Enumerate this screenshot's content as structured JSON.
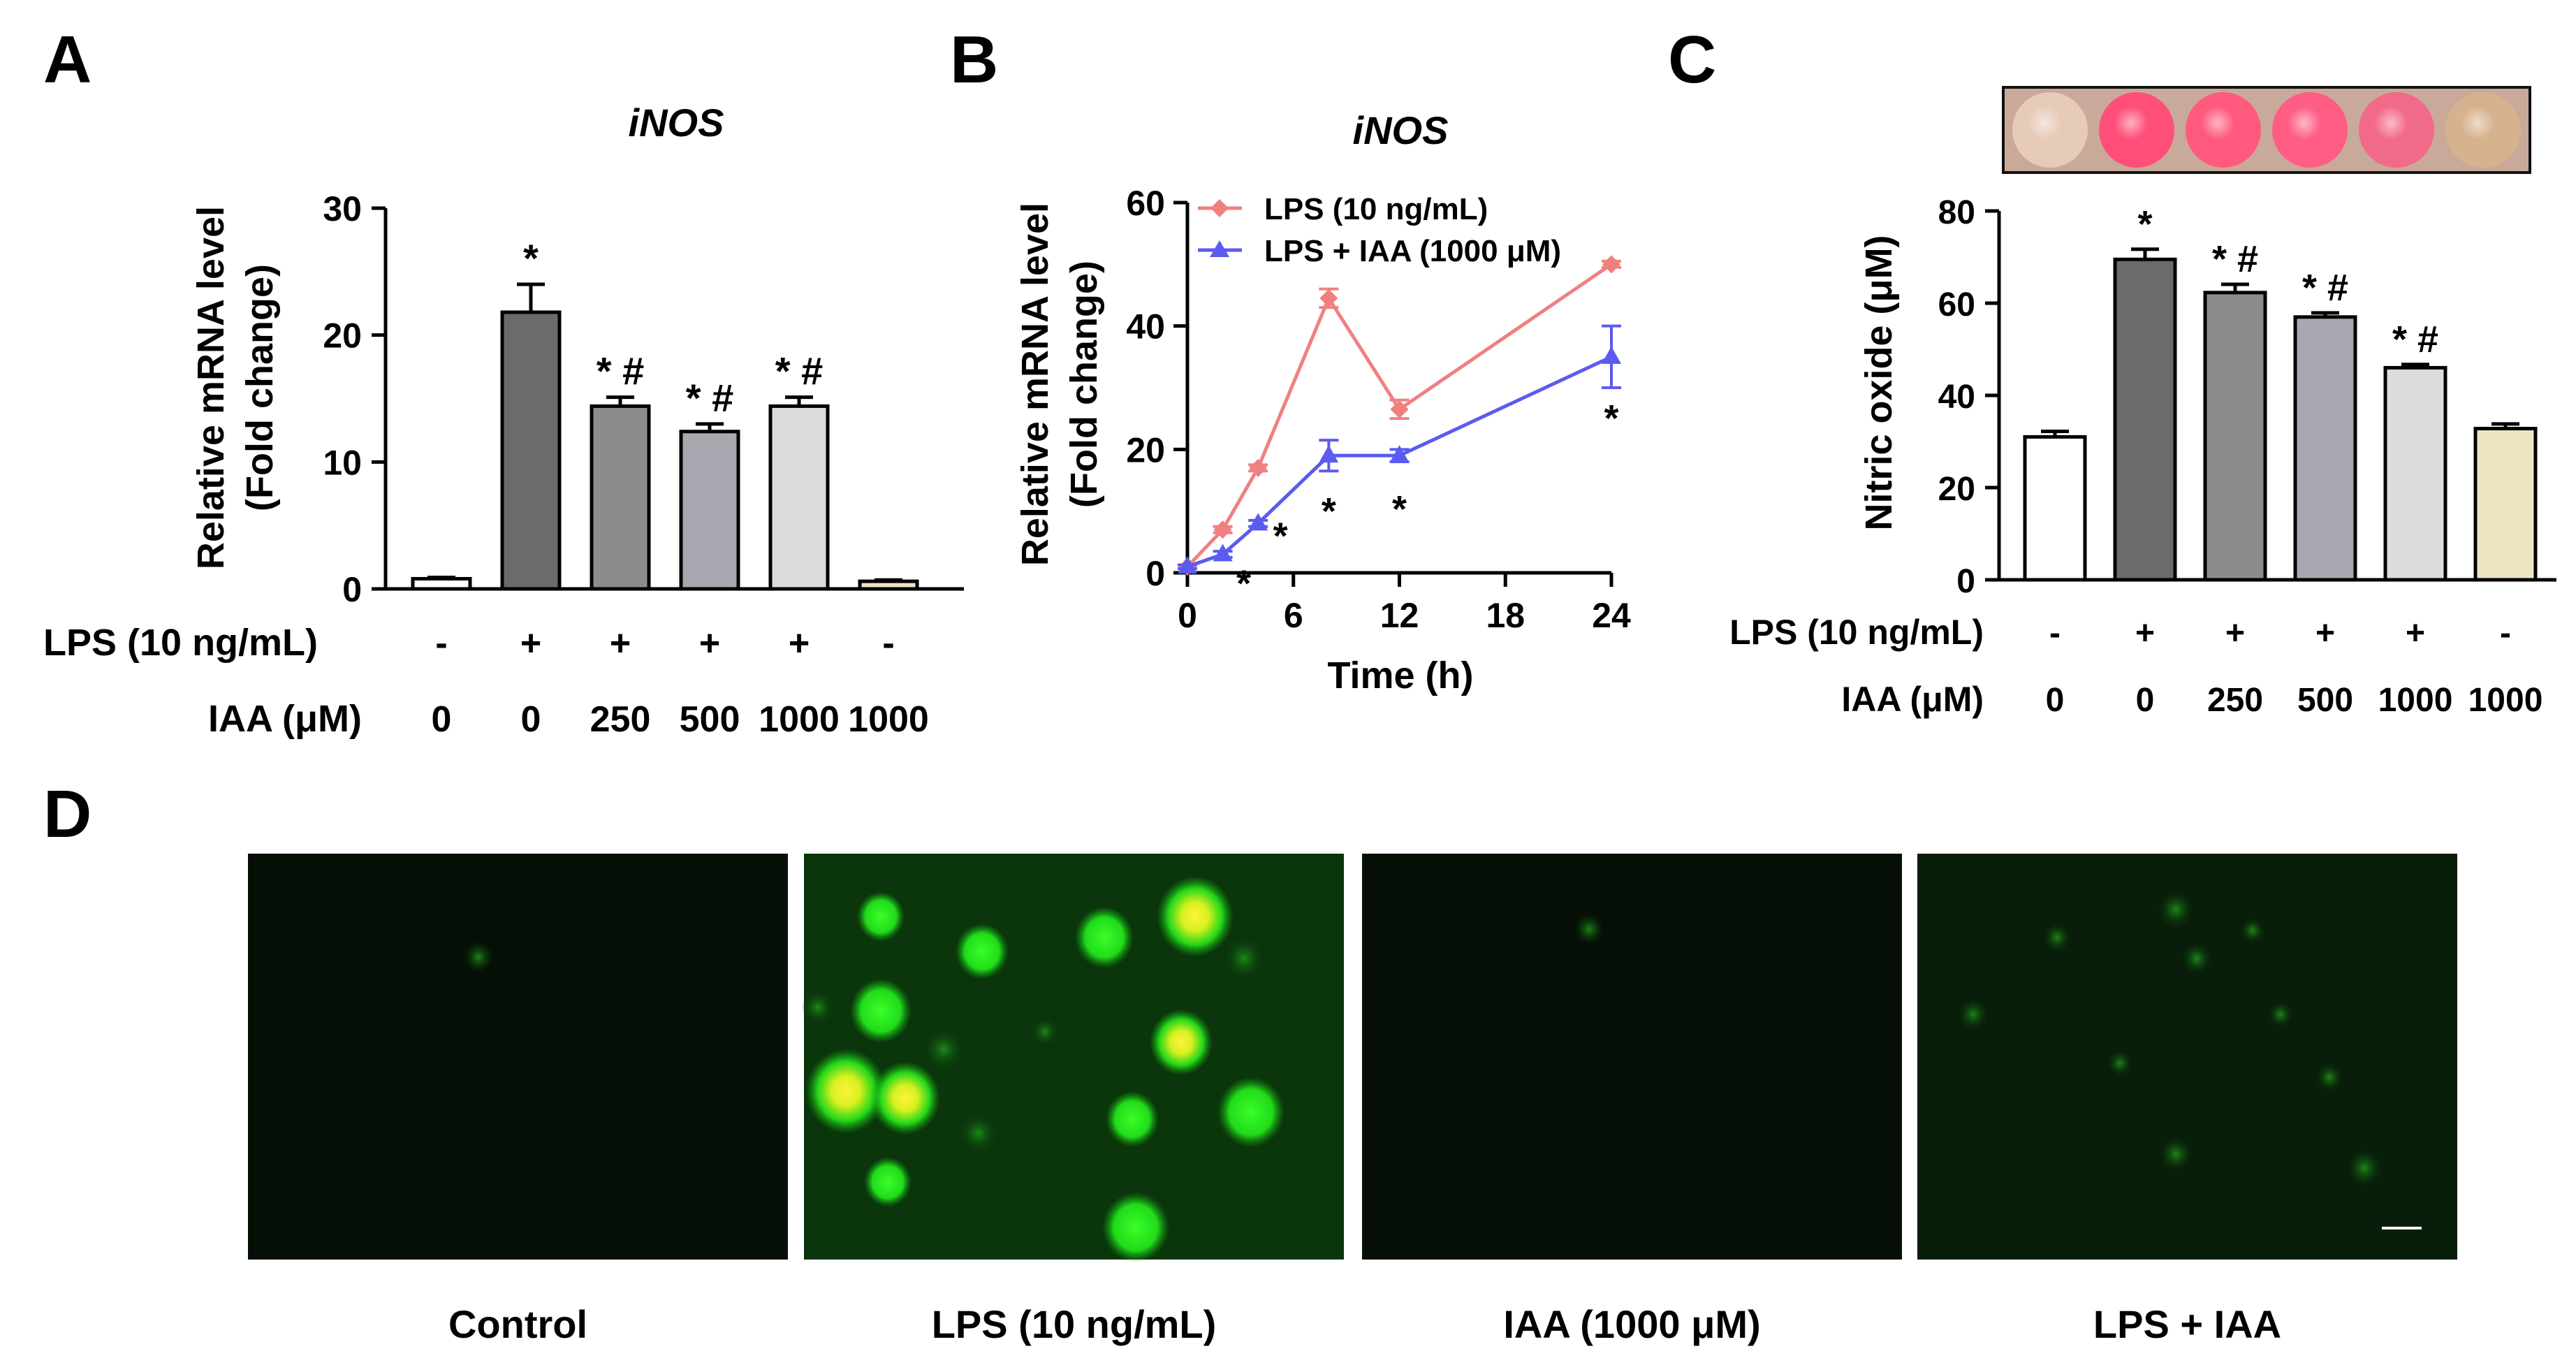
{
  "colors": {
    "axis": "#000000",
    "lps_line": "#f08080",
    "lps_iaa_line": "#5b5bf0",
    "bar_fills": [
      "#ffffff",
      "#6b6b6b",
      "#8c8c8c",
      "#a8a8b0",
      "#dcdcdc",
      "#eee4c4"
    ],
    "fluor_green": "#22e81a",
    "fluor_core": "#f2f21a"
  },
  "panels": {
    "a": {
      "letter": "A"
    },
    "b": {
      "letter": "B"
    },
    "c": {
      "letter": "C"
    },
    "d": {
      "letter": "D",
      "images": [
        {
          "caption": "Control",
          "icon": "fluorescence-image"
        },
        {
          "caption": "LPS (10 ng/mL)",
          "icon": "fluorescence-image"
        },
        {
          "caption": "IAA (1000 μM)",
          "icon": "fluorescence-image"
        },
        {
          "caption": "LPS + IAA",
          "icon": "fluorescence-image"
        }
      ]
    }
  },
  "chart_data": [
    {
      "type": "bar",
      "title": "iNOS",
      "ylabel": [
        "Relative mRNA level",
        "(Fold change)"
      ],
      "ylim": [
        0,
        30
      ],
      "yticks": [
        0,
        10,
        20,
        30
      ],
      "row_labels": [
        "LPS (10 ng/mL)",
        "IAA (μM)"
      ],
      "categories": [
        {
          "lps": "-",
          "iaa": "0"
        },
        {
          "lps": "+",
          "iaa": "0"
        },
        {
          "lps": "+",
          "iaa": "250"
        },
        {
          "lps": "+",
          "iaa": "500"
        },
        {
          "lps": "+",
          "iaa": "1000"
        },
        {
          "lps": "-",
          "iaa": "1000"
        }
      ],
      "values": [
        0.8,
        21.8,
        14.4,
        12.4,
        14.4,
        0.6
      ],
      "errors": [
        0.1,
        2.2,
        0.7,
        0.6,
        0.7,
        0.1
      ],
      "annotations": [
        "",
        "*",
        "* #",
        "* #",
        "* #",
        ""
      ]
    },
    {
      "type": "line",
      "title": "iNOS",
      "ylabel": [
        "Relative mRNA level",
        "(Fold change)"
      ],
      "xlabel": "Time (h)",
      "xlim": [
        0,
        24
      ],
      "xticks": [
        0,
        6,
        12,
        18,
        24
      ],
      "ylim": [
        0,
        60
      ],
      "yticks": [
        0,
        20,
        40,
        60
      ],
      "legend_position": "top-left",
      "series": [
        {
          "name": "LPS (10 ng/mL)",
          "marker": "diamond",
          "x": [
            0,
            2,
            4,
            8,
            12,
            24
          ],
          "y": [
            1,
            7,
            17,
            44.5,
            26.5,
            50
          ],
          "errors": [
            0.3,
            0.5,
            0.5,
            1.5,
            1.5,
            0.5
          ]
        },
        {
          "name": "LPS + IAA (1000 μM)",
          "marker": "triangle",
          "x": [
            0,
            2,
            4,
            8,
            12,
            24
          ],
          "y": [
            1,
            3,
            8,
            19,
            19,
            35
          ],
          "errors": [
            0.3,
            0.5,
            0.5,
            2.5,
            1,
            5
          ],
          "annotations": [
            "",
            "*",
            "*",
            "*",
            "*",
            "*"
          ]
        }
      ]
    },
    {
      "type": "bar",
      "ylabel": "Nitric oxide (μM)",
      "ylim": [
        0,
        80
      ],
      "yticks": [
        0,
        20,
        40,
        60,
        80
      ],
      "row_labels": [
        "LPS (10 ng/mL)",
        "IAA (μM)"
      ],
      "categories": [
        {
          "lps": "-",
          "iaa": "0"
        },
        {
          "lps": "+",
          "iaa": "0"
        },
        {
          "lps": "+",
          "iaa": "250"
        },
        {
          "lps": "+",
          "iaa": "500"
        },
        {
          "lps": "+",
          "iaa": "1000"
        },
        {
          "lps": "-",
          "iaa": "1000"
        }
      ],
      "values": [
        31,
        69.5,
        62.3,
        57,
        46,
        32.8
      ],
      "errors": [
        1.2,
        2.2,
        1.8,
        0.9,
        0.7,
        1
      ],
      "annotations": [
        "",
        "*",
        "* #",
        "* #",
        "* #",
        ""
      ],
      "well_colors": [
        "#e7cbb9",
        "#ff4f78",
        "#ff5a7e",
        "#ff5d84",
        "#f26a8a",
        "#d7b28e"
      ]
    }
  ]
}
